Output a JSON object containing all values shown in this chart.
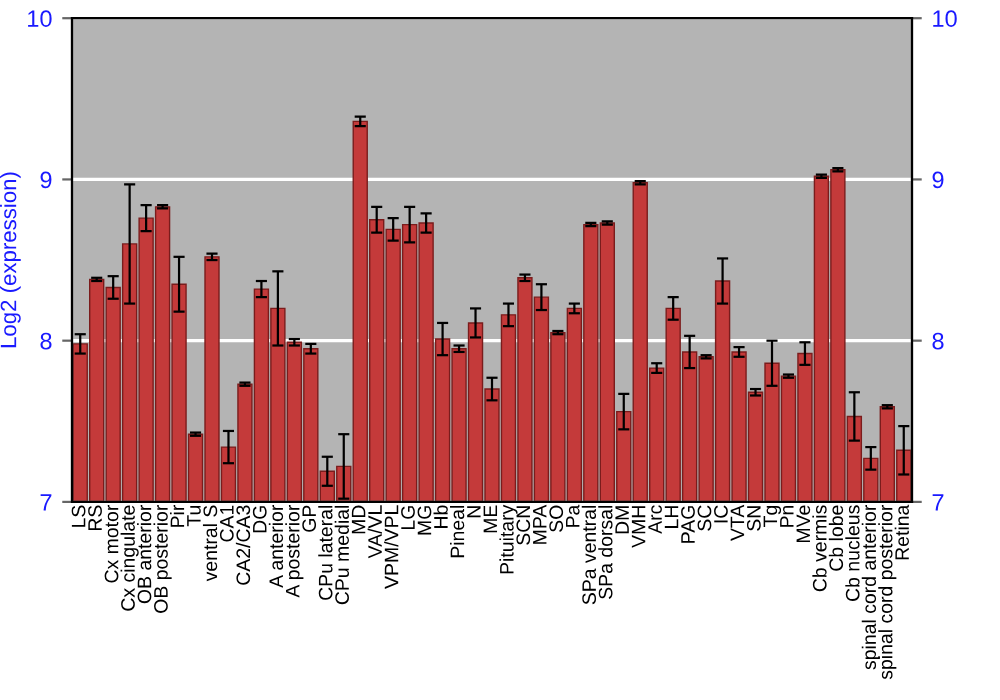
{
  "chart_data": {
    "type": "bar",
    "ylabel": "Log2 (expression)",
    "categories": [
      "LS",
      "RS",
      "Cx motor",
      "Cx cingulate",
      "OB anterior",
      "OB posterior",
      "Pir",
      "Tu",
      "ventral S",
      "CA1",
      "CA2/CA3",
      "DG",
      "A anterior",
      "A posterior",
      "GP",
      "CPu lateral",
      "CPu medial",
      "MD",
      "VA/VL",
      "VPM/VPL",
      "LG",
      "MG",
      "Hb",
      "Pineal",
      "N",
      "ME",
      "Pituitary",
      "SCN",
      "MPA",
      "SO",
      "Pa",
      "SPa ventral",
      "SPa dorsal",
      "DM",
      "VMH",
      "Arc",
      "LH",
      "PAG",
      "SC",
      "IC",
      "VTA",
      "SN",
      "Tg",
      "Pn",
      "MVe",
      "Cb vermis",
      "Cb lobe",
      "Cb nucleus",
      "spinal cord anterior",
      "spinal cord posterior",
      "Retina"
    ],
    "series": [
      {
        "color": "#c43a3a",
        "values": [
          7.98,
          8.38,
          8.33,
          8.6,
          8.76,
          8.83,
          8.35,
          7.42,
          8.52,
          7.34,
          7.73,
          8.32,
          8.2,
          7.99,
          7.95,
          7.19,
          7.22,
          9.36,
          8.75,
          8.69,
          8.72,
          8.73,
          8.01,
          7.95,
          8.11,
          7.7,
          8.16,
          8.39,
          8.27,
          8.05,
          8.2,
          8.72,
          8.73,
          7.56,
          8.98,
          7.83,
          8.2,
          7.93,
          7.9,
          8.37,
          7.93,
          7.68,
          7.86,
          7.78,
          7.92,
          9.02,
          9.06,
          7.53,
          7.27,
          7.59,
          7.32
        ],
        "errors": [
          0.06,
          0.01,
          0.07,
          0.37,
          0.08,
          0.01,
          0.17,
          0.01,
          0.02,
          0.1,
          0.01,
          0.05,
          0.23,
          0.02,
          0.03,
          0.09,
          0.2,
          0.03,
          0.08,
          0.07,
          0.11,
          0.06,
          0.1,
          0.02,
          0.09,
          0.07,
          0.07,
          0.02,
          0.08,
          0.01,
          0.03,
          0.01,
          0.01,
          0.11,
          0.01,
          0.03,
          0.07,
          0.1,
          0.01,
          0.14,
          0.03,
          0.02,
          0.14,
          0.01,
          0.07,
          0.01,
          0.01,
          0.15,
          0.07,
          0.01,
          0.15
        ]
      }
    ],
    "ylim": [
      7,
      10
    ],
    "yticks": [
      7,
      8,
      9,
      10
    ],
    "y2lim": [
      7,
      10
    ],
    "y2ticks": [
      7,
      8,
      9,
      10
    ],
    "grid": "y"
  }
}
